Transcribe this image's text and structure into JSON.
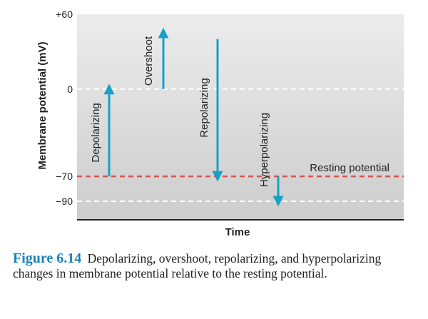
{
  "chart_data": {
    "type": "line",
    "ylabel": "Membrane potential (mV)",
    "xlabel": "Time",
    "yticks": [
      {
        "value": 60,
        "label": "+60"
      },
      {
        "value": 0,
        "label": "0"
      },
      {
        "value": -70,
        "label": "−70"
      },
      {
        "value": -90,
        "label": "−90"
      }
    ],
    "ylim": [
      -98,
      65
    ],
    "reference_lines": [
      {
        "value": 0,
        "color": "#ffffff",
        "style": "dashed"
      },
      {
        "value": -70,
        "color": "#d9534f",
        "style": "dashed",
        "label": "Resting potential"
      },
      {
        "value": -90,
        "color": "#ffffff",
        "style": "dashed"
      }
    ],
    "arrows": [
      {
        "label": "Depolarizing",
        "from": -70,
        "to": 0,
        "color": "#17a2c4"
      },
      {
        "label": "Overshoot",
        "from": 0,
        "to": 45,
        "color": "#17a2c4"
      },
      {
        "label": "Repolarizing",
        "from": 40,
        "to": -70,
        "color": "#17a2c4"
      },
      {
        "label": "Hyperpolarizing",
        "from": -70,
        "to": -90,
        "color": "#17a2c4"
      }
    ],
    "colors": {
      "background_top": "#ececec",
      "background_bottom": "#cfcfcf",
      "arrow": "#17a2c4"
    }
  },
  "caption": {
    "label": "Figure 6.14",
    "text": "Depolarizing, overshoot, repolarizing, and hyperpolarizing changes in membrane potential relative to the resting potential."
  }
}
